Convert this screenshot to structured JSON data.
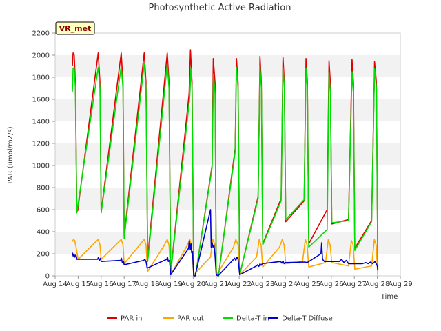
{
  "chart_data": {
    "type": "line",
    "title": "Photosynthetic Active Radiation",
    "xlabel": "Time",
    "ylabel": "PAR (umol/m2/s)",
    "ylim": [
      0,
      2200
    ],
    "xlim": [
      14,
      29
    ],
    "y_ticks": [
      0,
      200,
      400,
      600,
      800,
      1000,
      1200,
      1400,
      1600,
      1800,
      2000,
      2200
    ],
    "y_tick_labels": [
      "0",
      "200",
      "400",
      "600",
      "800",
      "1000",
      "1200",
      "1400",
      "1600",
      "1800",
      "2000",
      "2200"
    ],
    "x_ticks": [
      14,
      15,
      16,
      17,
      18,
      19,
      20,
      21,
      22,
      23,
      24,
      25,
      26,
      27,
      28,
      29
    ],
    "x_tick_labels": [
      "Aug 14",
      "Aug 15",
      "Aug 16",
      "Aug 17",
      "Aug 18",
      "Aug 19",
      "Aug 20",
      "Aug 21",
      "Aug 22",
      "Aug 23",
      "Aug 24",
      "Aug 25",
      "Aug 26",
      "Aug 27",
      "Aug 28",
      "Aug 29"
    ],
    "badge": "VR_met",
    "grid": "horizontal bands",
    "legend_position": "bottom",
    "series": [
      {
        "name": "PAR in",
        "color": "#e00000",
        "points": [
          [
            14.75,
            1900
          ],
          [
            14.78,
            2020
          ],
          [
            14.83,
            2000
          ],
          [
            14.88,
            1750
          ],
          [
            14.94,
            600
          ],
          [
            14.98,
            590
          ],
          [
            15.87,
            2020
          ],
          [
            15.95,
            1750
          ],
          [
            16.0,
            580
          ],
          [
            16.87,
            2020
          ],
          [
            16.95,
            1750
          ],
          [
            17.0,
            360
          ],
          [
            17.87,
            2020
          ],
          [
            17.95,
            1750
          ],
          [
            18.02,
            160
          ],
          [
            18.87,
            2020
          ],
          [
            18.95,
            1750
          ],
          [
            19.02,
            30
          ],
          [
            19.82,
            1650
          ],
          [
            19.88,
            2050
          ],
          [
            19.95,
            1750
          ],
          [
            20.02,
            0
          ],
          [
            20.1,
            0
          ],
          [
            20.82,
            1000
          ],
          [
            20.87,
            1970
          ],
          [
            20.95,
            1750
          ],
          [
            21.0,
            10
          ],
          [
            21.1,
            0
          ],
          [
            21.82,
            1150
          ],
          [
            21.88,
            1970
          ],
          [
            21.95,
            1750
          ],
          [
            22.02,
            10
          ],
          [
            22.82,
            720
          ],
          [
            22.9,
            1990
          ],
          [
            22.96,
            1750
          ],
          [
            23.02,
            290
          ],
          [
            23.82,
            700
          ],
          [
            23.9,
            1980
          ],
          [
            23.96,
            1750
          ],
          [
            24.02,
            490
          ],
          [
            24.82,
            680
          ],
          [
            24.9,
            1970
          ],
          [
            24.96,
            1750
          ],
          [
            25.02,
            290
          ],
          [
            25.82,
            600
          ],
          [
            25.9,
            1950
          ],
          [
            25.96,
            1750
          ],
          [
            26.02,
            470
          ],
          [
            26.75,
            510
          ],
          [
            26.9,
            1960
          ],
          [
            26.96,
            1750
          ],
          [
            27.02,
            250
          ],
          [
            27.75,
            500
          ],
          [
            27.88,
            1940
          ],
          [
            27.96,
            1750
          ],
          [
            28.02,
            50
          ]
        ]
      },
      {
        "name": "PAR out",
        "color": "#ffa500",
        "points": [
          [
            14.75,
            310
          ],
          [
            14.8,
            330
          ],
          [
            14.85,
            320
          ],
          [
            14.9,
            270
          ],
          [
            15.0,
            150
          ],
          [
            15.87,
            330
          ],
          [
            15.95,
            280
          ],
          [
            16.0,
            150
          ],
          [
            16.87,
            330
          ],
          [
            16.95,
            280
          ],
          [
            17.0,
            110
          ],
          [
            17.87,
            330
          ],
          [
            17.95,
            280
          ],
          [
            18.02,
            40
          ],
          [
            18.75,
            280
          ],
          [
            18.87,
            330
          ],
          [
            18.95,
            280
          ],
          [
            19.02,
            10
          ],
          [
            19.75,
            280
          ],
          [
            19.85,
            330
          ],
          [
            19.92,
            280
          ],
          [
            20.02,
            10
          ],
          [
            20.75,
            170
          ],
          [
            20.85,
            330
          ],
          [
            20.95,
            280
          ],
          [
            21.02,
            10
          ],
          [
            21.75,
            260
          ],
          [
            21.85,
            330
          ],
          [
            21.95,
            280
          ],
          [
            22.02,
            10
          ],
          [
            22.75,
            170
          ],
          [
            22.87,
            330
          ],
          [
            22.95,
            280
          ],
          [
            23.02,
            80
          ],
          [
            23.75,
            260
          ],
          [
            23.87,
            330
          ],
          [
            23.95,
            280
          ],
          [
            24.02,
            110
          ],
          [
            24.75,
            130
          ],
          [
            24.87,
            330
          ],
          [
            24.95,
            280
          ],
          [
            25.02,
            80
          ],
          [
            25.75,
            120
          ],
          [
            25.87,
            330
          ],
          [
            25.95,
            280
          ],
          [
            26.02,
            120
          ],
          [
            26.75,
            90
          ],
          [
            26.87,
            320
          ],
          [
            26.95,
            280
          ],
          [
            27.02,
            60
          ],
          [
            27.75,
            90
          ],
          [
            27.87,
            330
          ],
          [
            27.95,
            280
          ],
          [
            28.02,
            0
          ]
        ]
      },
      {
        "name": "Delta-T in",
        "color": "#00dd00",
        "points": [
          [
            14.75,
            1670
          ],
          [
            14.78,
            1880
          ],
          [
            14.83,
            1890
          ],
          [
            14.88,
            1700
          ],
          [
            14.94,
            570
          ],
          [
            15.87,
            1890
          ],
          [
            15.95,
            1700
          ],
          [
            16.0,
            570
          ],
          [
            16.87,
            1900
          ],
          [
            16.95,
            1700
          ],
          [
            17.0,
            340
          ],
          [
            17.87,
            1920
          ],
          [
            17.95,
            1700
          ],
          [
            18.02,
            130
          ],
          [
            18.87,
            1920
          ],
          [
            18.95,
            1700
          ],
          [
            19.02,
            20
          ],
          [
            19.85,
            1620
          ],
          [
            19.9,
            1880
          ],
          [
            19.95,
            1700
          ],
          [
            20.02,
            0
          ],
          [
            20.1,
            0
          ],
          [
            20.82,
            980
          ],
          [
            20.88,
            1830
          ],
          [
            20.95,
            1650
          ],
          [
            21.0,
            10
          ],
          [
            21.1,
            0
          ],
          [
            21.82,
            1120
          ],
          [
            21.88,
            1890
          ],
          [
            21.95,
            1700
          ],
          [
            22.02,
            10
          ],
          [
            22.82,
            700
          ],
          [
            22.9,
            1900
          ],
          [
            22.96,
            1700
          ],
          [
            23.02,
            280
          ],
          [
            23.82,
            680
          ],
          [
            23.9,
            1890
          ],
          [
            23.96,
            1700
          ],
          [
            24.02,
            510
          ],
          [
            24.82,
            690
          ],
          [
            24.9,
            1880
          ],
          [
            24.96,
            1700
          ],
          [
            25.02,
            260
          ],
          [
            25.82,
            420
          ],
          [
            25.9,
            1840
          ],
          [
            25.96,
            1650
          ],
          [
            26.02,
            480
          ],
          [
            26.75,
            500
          ],
          [
            26.9,
            1850
          ],
          [
            26.96,
            1650
          ],
          [
            27.02,
            230
          ],
          [
            27.75,
            490
          ],
          [
            27.88,
            1880
          ],
          [
            27.96,
            1700
          ],
          [
            28.02,
            60
          ]
        ]
      },
      {
        "name": "Delta-T Diffuse",
        "color": "#0000cc",
        "points": [
          [
            14.75,
            210
          ],
          [
            14.78,
            180
          ],
          [
            14.82,
            200
          ],
          [
            14.86,
            170
          ],
          [
            14.9,
            190
          ],
          [
            14.95,
            150
          ],
          [
            15.85,
            150
          ],
          [
            15.88,
            170
          ],
          [
            15.92,
            140
          ],
          [
            15.97,
            160
          ],
          [
            16.0,
            130
          ],
          [
            16.85,
            140
          ],
          [
            16.88,
            160
          ],
          [
            16.92,
            120
          ],
          [
            16.97,
            130
          ],
          [
            17.0,
            100
          ],
          [
            17.85,
            140
          ],
          [
            17.9,
            150
          ],
          [
            17.95,
            130
          ],
          [
            18.0,
            70
          ],
          [
            18.85,
            150
          ],
          [
            18.88,
            170
          ],
          [
            18.92,
            130
          ],
          [
            18.97,
            140
          ],
          [
            19.02,
            10
          ],
          [
            19.8,
            250
          ],
          [
            19.83,
            320
          ],
          [
            19.87,
            240
          ],
          [
            19.9,
            290
          ],
          [
            19.93,
            210
          ],
          [
            19.97,
            220
          ],
          [
            20.02,
            0
          ],
          [
            20.08,
            0
          ],
          [
            20.75,
            600
          ],
          [
            20.78,
            260
          ],
          [
            20.82,
            300
          ],
          [
            20.86,
            260
          ],
          [
            20.9,
            280
          ],
          [
            20.95,
            180
          ],
          [
            21.0,
            10
          ],
          [
            21.08,
            0
          ],
          [
            21.8,
            160
          ],
          [
            21.85,
            140
          ],
          [
            21.9,
            170
          ],
          [
            21.95,
            150
          ],
          [
            22.02,
            10
          ],
          [
            22.75,
            90
          ],
          [
            22.8,
            100
          ],
          [
            22.85,
            85
          ],
          [
            22.9,
            110
          ],
          [
            22.95,
            95
          ],
          [
            23.0,
            110
          ],
          [
            23.8,
            130
          ],
          [
            23.85,
            115
          ],
          [
            23.9,
            135
          ],
          [
            23.95,
            110
          ],
          [
            24.0,
            120
          ],
          [
            24.85,
            125
          ],
          [
            24.95,
            120
          ],
          [
            25.55,
            200
          ],
          [
            25.58,
            300
          ],
          [
            25.62,
            150
          ],
          [
            25.7,
            130
          ],
          [
            26.35,
            130
          ],
          [
            26.45,
            150
          ],
          [
            26.55,
            120
          ],
          [
            26.65,
            140
          ],
          [
            26.75,
            110
          ],
          [
            27.35,
            110
          ],
          [
            27.5,
            120
          ],
          [
            27.6,
            110
          ],
          [
            27.7,
            125
          ],
          [
            27.8,
            110
          ],
          [
            27.9,
            130
          ],
          [
            28.0,
            90
          ],
          [
            28.02,
            50
          ]
        ]
      }
    ]
  }
}
